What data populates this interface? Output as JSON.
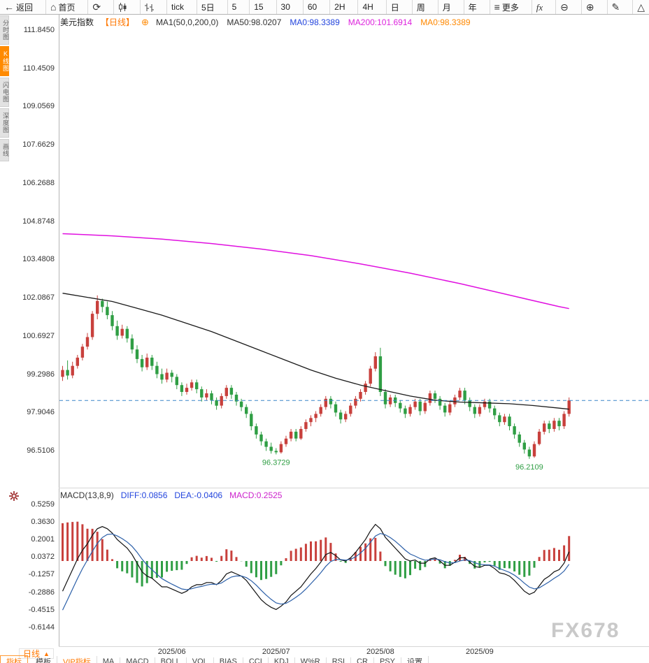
{
  "toolbar": {
    "items": [
      {
        "name": "back-button",
        "icon": "arrow-left",
        "label": "返回"
      },
      {
        "name": "home-button",
        "icon": "home",
        "label": "首页"
      },
      {
        "name": "refresh-button",
        "icon": "refresh"
      },
      {
        "name": "candlestick-style-button",
        "icon": "candles"
      },
      {
        "name": "ohlc-style-button",
        "icon": "ohlc-bars"
      },
      {
        "name": "period-tick-button",
        "label": "tick"
      },
      {
        "name": "period-5d-button",
        "label": "5日"
      },
      {
        "name": "period-5m-button",
        "label": "5"
      },
      {
        "name": "period-15m-button",
        "label": "15"
      },
      {
        "name": "period-30m-button",
        "label": "30"
      },
      {
        "name": "period-60m-button",
        "label": "60"
      },
      {
        "name": "period-2h-button",
        "label": "2H"
      },
      {
        "name": "period-4h-button",
        "label": "4H"
      },
      {
        "name": "period-day-button",
        "label": "日"
      },
      {
        "name": "period-week-button",
        "label": "周"
      },
      {
        "name": "period-month-button",
        "label": "月"
      },
      {
        "name": "period-year-button",
        "label": "年"
      },
      {
        "name": "more-button",
        "icon": "menu",
        "label": "更多"
      },
      {
        "name": "fx-indicators-button",
        "icon": "fx"
      },
      {
        "name": "zoom-out-button",
        "icon": "zoom-out"
      },
      {
        "name": "zoom-in-button",
        "icon": "zoom-in"
      },
      {
        "name": "draw-tool-button",
        "icon": "pencil"
      },
      {
        "name": "shape-tool-button",
        "icon": "triangle"
      }
    ]
  },
  "sidebar": {
    "items": [
      {
        "name": "sidebar-tab-timeline",
        "label": "分时图",
        "active": false
      },
      {
        "name": "sidebar-tab-kline",
        "label": "K线图",
        "active": true
      },
      {
        "name": "sidebar-tab-lightning",
        "label": "闪电图",
        "active": false
      },
      {
        "name": "sidebar-tab-depth",
        "label": "深度图",
        "active": false
      },
      {
        "name": "sidebar-tab-draw",
        "label": "画线",
        "active": false
      }
    ]
  },
  "chart": {
    "title": "美元指数",
    "period_tag": "【日线】",
    "add_icon": "⊕",
    "ma_labels": [
      {
        "text": "MA1(50,0,200,0)",
        "color": "#333333"
      },
      {
        "text": "MA50:98.0207",
        "color": "#333333"
      },
      {
        "text": "MA0:98.3389",
        "color": "#2244dd"
      },
      {
        "text": "MA200:101.6914",
        "color": "#dd22dd"
      },
      {
        "text": "MA0:98.3389",
        "color": "#ff8800"
      }
    ]
  },
  "macd": {
    "header": [
      {
        "text": "MACD(13,8,9)",
        "color": "#333333"
      },
      {
        "text": "DIFF:0.0856",
        "color": "#2244dd"
      },
      {
        "text": "DEA:-0.0406",
        "color": "#2244dd"
      },
      {
        "text": "MACD:0.2525",
        "color": "#cc22cc"
      }
    ]
  },
  "chart_data": [
    {
      "type": "candlestick",
      "symbol": "美元指数",
      "period": "日线",
      "y_ticks": [
        111.845,
        110.4509,
        109.0569,
        107.6629,
        106.2688,
        104.8748,
        103.4808,
        102.0867,
        100.6927,
        99.2986,
        97.9046,
        96.5106
      ],
      "last_price": 98.3389,
      "x_ticks": [
        {
          "label": "2025/06",
          "index": 22
        },
        {
          "label": "2025/07",
          "index": 43
        },
        {
          "label": "2025/08",
          "index": 64
        },
        {
          "label": "2025/09",
          "index": 84
        }
      ],
      "annotations": [
        {
          "index": 43,
          "value": 96.3729,
          "text": "96.3729"
        },
        {
          "index": 94,
          "value": 96.2109,
          "text": "96.2109"
        }
      ],
      "overlays": [
        {
          "name": "MA50",
          "color_key": "ma50",
          "width": 1.3,
          "points": [
            [
              0,
              102.25
            ],
            [
              5,
              102.1
            ],
            [
              10,
              101.95
            ],
            [
              15,
              101.7
            ],
            [
              20,
              101.45
            ],
            [
              25,
              101.15
            ],
            [
              30,
              100.85
            ],
            [
              35,
              100.5
            ],
            [
              40,
              100.15
            ],
            [
              45,
              99.8
            ],
            [
              50,
              99.45
            ],
            [
              55,
              99.15
            ],
            [
              60,
              98.9
            ],
            [
              65,
              98.7
            ],
            [
              70,
              98.5
            ],
            [
              75,
              98.35
            ],
            [
              80,
              98.28
            ],
            [
              85,
              98.25
            ],
            [
              90,
              98.22
            ],
            [
              95,
              98.15
            ],
            [
              100,
              98.06
            ],
            [
              102,
              98.02
            ]
          ]
        },
        {
          "name": "MA200",
          "color_key": "ma200",
          "width": 1.5,
          "points": [
            [
              0,
              104.42
            ],
            [
              10,
              104.34
            ],
            [
              20,
              104.22
            ],
            [
              30,
              104.06
            ],
            [
              40,
              103.86
            ],
            [
              50,
              103.62
            ],
            [
              60,
              103.32
            ],
            [
              70,
              102.98
            ],
            [
              80,
              102.6
            ],
            [
              90,
              102.18
            ],
            [
              100,
              101.76
            ],
            [
              102,
              101.69
            ]
          ]
        }
      ],
      "candles": [
        [
          99.2,
          99.6,
          99.05,
          99.45
        ],
        [
          99.45,
          99.8,
          99.1,
          99.25
        ],
        [
          99.25,
          99.75,
          99.15,
          99.6
        ],
        [
          99.6,
          100.0,
          99.5,
          99.9
        ],
        [
          99.9,
          100.4,
          99.8,
          100.3
        ],
        [
          100.3,
          100.8,
          100.2,
          100.65
        ],
        [
          100.65,
          101.6,
          100.55,
          101.5
        ],
        [
          101.5,
          102.17,
          101.3,
          101.97
        ],
        [
          101.97,
          102.05,
          101.55,
          101.75
        ],
        [
          101.75,
          101.95,
          101.3,
          101.45
        ],
        [
          101.45,
          101.6,
          100.9,
          101.05
        ],
        [
          101.05,
          101.25,
          100.55,
          100.7
        ],
        [
          100.7,
          101.1,
          100.6,
          100.95
        ],
        [
          100.95,
          101.05,
          100.45,
          100.6
        ],
        [
          100.6,
          100.75,
          100.05,
          100.2
        ],
        [
          100.2,
          100.35,
          99.7,
          99.85
        ],
        [
          99.85,
          100.0,
          99.4,
          99.55
        ],
        [
          99.55,
          100.05,
          99.45,
          99.9
        ],
        [
          99.9,
          100.0,
          99.45,
          99.6
        ],
        [
          99.6,
          99.75,
          99.15,
          99.3
        ],
        [
          99.3,
          99.5,
          98.95,
          99.1
        ],
        [
          99.1,
          99.5,
          99.0,
          99.35
        ],
        [
          99.35,
          99.45,
          99.0,
          99.2
        ],
        [
          99.2,
          99.3,
          98.75,
          98.9
        ],
        [
          98.9,
          99.0,
          98.5,
          98.65
        ],
        [
          98.65,
          98.95,
          98.55,
          98.8
        ],
        [
          98.8,
          99.1,
          98.7,
          99.0
        ],
        [
          99.0,
          99.1,
          98.6,
          98.75
        ],
        [
          98.75,
          98.85,
          98.3,
          98.45
        ],
        [
          98.45,
          98.75,
          98.35,
          98.6
        ],
        [
          98.6,
          98.7,
          98.2,
          98.35
        ],
        [
          98.35,
          98.45,
          98.0,
          98.15
        ],
        [
          98.15,
          98.6,
          98.05,
          98.5
        ],
        [
          98.5,
          98.9,
          98.4,
          98.8
        ],
        [
          98.8,
          98.9,
          98.4,
          98.55
        ],
        [
          98.55,
          98.65,
          98.15,
          98.3
        ],
        [
          98.3,
          98.4,
          97.95,
          98.1
        ],
        [
          98.1,
          98.2,
          97.7,
          97.85
        ],
        [
          97.85,
          97.95,
          97.25,
          97.4
        ],
        [
          97.4,
          97.5,
          96.95,
          97.1
        ],
        [
          97.1,
          97.2,
          96.7,
          96.85
        ],
        [
          96.85,
          96.95,
          96.5,
          96.65
        ],
        [
          96.65,
          96.8,
          96.4,
          96.5
        ],
        [
          96.5,
          96.6,
          96.3729,
          96.45
        ],
        [
          96.45,
          96.85,
          96.4,
          96.75
        ],
        [
          96.75,
          97.05,
          96.65,
          96.95
        ],
        [
          96.95,
          97.3,
          96.85,
          97.2
        ],
        [
          97.2,
          97.3,
          96.85,
          96.95
        ],
        [
          96.95,
          97.4,
          96.9,
          97.3
        ],
        [
          97.3,
          97.65,
          97.2,
          97.55
        ],
        [
          97.55,
          97.8,
          97.4,
          97.7
        ],
        [
          97.7,
          97.95,
          97.55,
          97.85
        ],
        [
          97.85,
          98.2,
          97.75,
          98.1
        ],
        [
          98.1,
          98.5,
          98.0,
          98.4
        ],
        [
          98.4,
          98.5,
          98.05,
          98.2
        ],
        [
          98.2,
          98.3,
          97.75,
          97.9
        ],
        [
          97.9,
          98.0,
          97.5,
          97.65
        ],
        [
          97.65,
          97.95,
          97.55,
          97.85
        ],
        [
          97.85,
          98.25,
          97.75,
          98.15
        ],
        [
          98.15,
          98.5,
          98.05,
          98.4
        ],
        [
          98.4,
          98.75,
          98.3,
          98.65
        ],
        [
          98.65,
          99.05,
          98.55,
          98.95
        ],
        [
          98.95,
          99.6,
          98.85,
          99.5
        ],
        [
          99.5,
          100.1,
          99.4,
          99.95
        ],
        [
          99.95,
          100.26,
          98.5,
          98.65
        ],
        [
          98.65,
          98.75,
          98.05,
          98.2
        ],
        [
          98.2,
          98.55,
          98.1,
          98.45
        ],
        [
          98.45,
          98.55,
          98.1,
          98.25
        ],
        [
          98.25,
          98.35,
          97.9,
          98.05
        ],
        [
          98.05,
          98.15,
          97.7,
          97.85
        ],
        [
          97.85,
          98.2,
          97.75,
          98.1
        ],
        [
          98.1,
          98.4,
          98.0,
          98.3
        ],
        [
          98.3,
          98.4,
          97.8,
          97.95
        ],
        [
          97.95,
          98.35,
          97.85,
          98.25
        ],
        [
          98.25,
          98.7,
          98.15,
          98.6
        ],
        [
          98.6,
          98.7,
          98.25,
          98.4
        ],
        [
          98.4,
          98.5,
          98.0,
          98.15
        ],
        [
          98.15,
          98.25,
          97.75,
          97.9
        ],
        [
          97.9,
          98.3,
          97.8,
          98.2
        ],
        [
          98.2,
          98.55,
          98.1,
          98.45
        ],
        [
          98.45,
          98.8,
          98.35,
          98.7
        ],
        [
          98.7,
          98.8,
          98.2,
          98.35
        ],
        [
          98.35,
          98.45,
          97.95,
          98.1
        ],
        [
          98.1,
          98.2,
          97.7,
          97.85
        ],
        [
          97.85,
          98.2,
          97.75,
          98.1
        ],
        [
          98.1,
          98.4,
          98.0,
          98.3
        ],
        [
          98.3,
          98.4,
          97.9,
          98.05
        ],
        [
          98.05,
          98.15,
          97.65,
          97.8
        ],
        [
          97.8,
          97.9,
          97.4,
          97.55
        ],
        [
          97.55,
          97.85,
          97.45,
          97.75
        ],
        [
          97.75,
          97.85,
          97.25,
          97.4
        ],
        [
          97.4,
          97.5,
          96.95,
          97.1
        ],
        [
          97.1,
          97.2,
          96.65,
          96.8
        ],
        [
          96.8,
          96.9,
          96.4,
          96.55
        ],
        [
          96.55,
          96.65,
          96.2109,
          96.3
        ],
        [
          96.3,
          96.85,
          96.25,
          96.75
        ],
        [
          96.75,
          97.3,
          96.7,
          97.2
        ],
        [
          97.2,
          97.6,
          97.1,
          97.5
        ],
        [
          97.5,
          97.6,
          97.15,
          97.3
        ],
        [
          97.3,
          97.7,
          97.2,
          97.6
        ],
        [
          97.6,
          97.7,
          97.25,
          97.4
        ],
        [
          97.4,
          97.95,
          97.3,
          97.85
        ],
        [
          97.85,
          98.45,
          97.75,
          98.34
        ]
      ]
    },
    {
      "type": "macd",
      "params": "MACD(13,8,9)",
      "y_ticks": [
        0.5259,
        0.363,
        0.2001,
        0.0372,
        -0.1257,
        -0.2886,
        -0.4515,
        -0.6144
      ],
      "latest": {
        "diff": 0.0856,
        "dea": -0.0406,
        "macd": 0.2525
      },
      "diff": [
        -0.28,
        -0.18,
        -0.08,
        0.02,
        0.1,
        0.16,
        0.24,
        0.3,
        0.32,
        0.3,
        0.26,
        0.2,
        0.16,
        0.12,
        0.06,
        -0.02,
        -0.1,
        -0.14,
        -0.16,
        -0.2,
        -0.24,
        -0.24,
        -0.26,
        -0.28,
        -0.3,
        -0.28,
        -0.24,
        -0.22,
        -0.22,
        -0.2,
        -0.2,
        -0.22,
        -0.18,
        -0.12,
        -0.1,
        -0.12,
        -0.14,
        -0.18,
        -0.24,
        -0.3,
        -0.36,
        -0.4,
        -0.43,
        -0.45,
        -0.42,
        -0.38,
        -0.32,
        -0.28,
        -0.24,
        -0.18,
        -0.12,
        -0.07,
        -0.01,
        0.06,
        0.08,
        0.05,
        0.01,
        0.0,
        0.03,
        0.08,
        0.14,
        0.2,
        0.28,
        0.34,
        0.3,
        0.22,
        0.17,
        0.12,
        0.07,
        0.02,
        0.0,
        0.01,
        -0.02,
        -0.02,
        0.02,
        0.03,
        0.0,
        -0.04,
        -0.04,
        -0.01,
        0.03,
        0.03,
        -0.01,
        -0.05,
        -0.06,
        -0.04,
        -0.04,
        -0.07,
        -0.11,
        -0.12,
        -0.14,
        -0.18,
        -0.23,
        -0.28,
        -0.31,
        -0.29,
        -0.23,
        -0.17,
        -0.14,
        -0.1,
        -0.08,
        -0.02,
        0.0856
      ]
    }
  ],
  "bottom": {
    "period_label": "日线",
    "arrow": "▲",
    "tabs": [
      {
        "name": "tab-indicator",
        "label": "指标",
        "style": "active"
      },
      {
        "name": "tab-template",
        "label": "模板"
      },
      {
        "name": "tab-vip-indicator",
        "label": "VIP指标",
        "style": "vip"
      },
      {
        "name": "indicator-ma",
        "label": "MA"
      },
      {
        "name": "indicator-macd",
        "label": "MACD"
      },
      {
        "name": "indicator-boll",
        "label": "BOLL"
      },
      {
        "name": "indicator-vol",
        "label": "VOL"
      },
      {
        "name": "indicator-bias",
        "label": "BIAS"
      },
      {
        "name": "indicator-cci",
        "label": "CCI"
      },
      {
        "name": "indicator-kdj",
        "label": "KDJ"
      },
      {
        "name": "indicator-wr",
        "label": "W%R"
      },
      {
        "name": "indicator-rsi",
        "label": "RSI"
      },
      {
        "name": "indicator-cr",
        "label": "CR"
      },
      {
        "name": "indicator-psy",
        "label": "PSY"
      },
      {
        "name": "tab-settings",
        "label": "设置"
      }
    ]
  },
  "watermark": "FX678",
  "colors": {
    "up": "#c8403c",
    "down": "#2f9e44",
    "ma50": "#1a1a1a",
    "ma200": "#e010e0",
    "diff_line": "#111111",
    "dea_line": "#2b5fa8",
    "dashed": "#3a86c8",
    "accent": "#ff7700",
    "watermark": "#c9c9c9"
  }
}
